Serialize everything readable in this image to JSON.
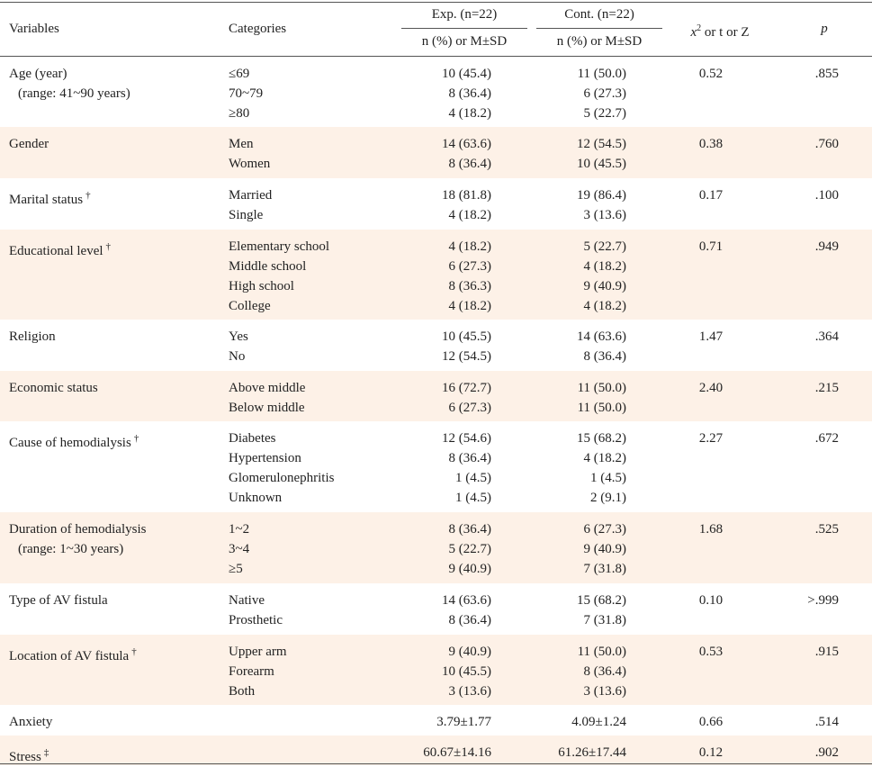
{
  "header": {
    "variables": "Variables",
    "categories": "Categories",
    "exp_group": "Exp. (n=22)",
    "cont_group": "Cont. (n=22)",
    "exp_sub": "n (%) or M±SD",
    "cont_sub": "n (%) or M±SD",
    "stat_x": "x",
    "stat_sup": "2",
    "stat_rest": " or t or Z",
    "p": "p"
  },
  "rows": [
    {
      "variable": [
        "Age (year)",
        "(range: 41~90 years)"
      ],
      "dagger": "",
      "categories": [
        "≤69",
        "70~79",
        "≥80"
      ],
      "exp": [
        "10 (45.4)",
        "8 (36.4)",
        "4 (18.2)"
      ],
      "cont": [
        "11 (50.0)",
        "6 (27.3)",
        "5 (22.7)"
      ],
      "stat": "0.52",
      "p": ".855"
    },
    {
      "variable": [
        "Gender"
      ],
      "dagger": "",
      "categories": [
        "Men",
        "Women"
      ],
      "exp": [
        "14 (63.6)",
        "8 (36.4)"
      ],
      "cont": [
        "12 (54.5)",
        "10 (45.5)"
      ],
      "stat": "0.38",
      "p": ".760"
    },
    {
      "variable": [
        "Marital status"
      ],
      "dagger": "†",
      "categories": [
        "Married",
        "Single"
      ],
      "exp": [
        "18 (81.8)",
        "4 (18.2)"
      ],
      "cont": [
        "19 (86.4)",
        "3 (13.6)"
      ],
      "stat": "0.17",
      "p": ".100"
    },
    {
      "variable": [
        "Educational level"
      ],
      "dagger": "†",
      "categories": [
        "Elementary school",
        "Middle school",
        "High school",
        "College"
      ],
      "exp": [
        "4 (18.2)",
        "6 (27.3)",
        "8 (36.3)",
        "4 (18.2)"
      ],
      "cont": [
        "5 (22.7)",
        "4 (18.2)",
        "9 (40.9)",
        "4 (18.2)"
      ],
      "stat": "0.71",
      "p": ".949"
    },
    {
      "variable": [
        "Religion"
      ],
      "dagger": "",
      "categories": [
        "Yes",
        "No"
      ],
      "exp": [
        "10 (45.5)",
        "12 (54.5)"
      ],
      "cont": [
        "14 (63.6)",
        "8 (36.4)"
      ],
      "stat": "1.47",
      "p": ".364"
    },
    {
      "variable": [
        "Economic status"
      ],
      "dagger": "",
      "categories": [
        "Above middle",
        "Below middle"
      ],
      "exp": [
        "16 (72.7)",
        "6 (27.3)"
      ],
      "cont": [
        "11 (50.0)",
        "11 (50.0)"
      ],
      "stat": "2.40",
      "p": ".215"
    },
    {
      "variable": [
        "Cause of hemodialysis"
      ],
      "dagger": "†",
      "categories": [
        "Diabetes",
        "Hypertension",
        "Glomerulonephritis",
        "Unknown"
      ],
      "exp": [
        "12 (54.6)",
        "8 (36.4)",
        "1 (4.5)",
        "1 (4.5)"
      ],
      "cont": [
        "15 (68.2)",
        "4 (18.2)",
        "1 (4.5)",
        "2 (9.1)"
      ],
      "stat": "2.27",
      "p": ".672"
    },
    {
      "variable": [
        "Duration of hemodialysis",
        "(range: 1~30 years)"
      ],
      "dagger": "",
      "categories": [
        "1~2",
        "3~4",
        "≥5"
      ],
      "exp": [
        "8 (36.4)",
        "5 (22.7)",
        "9 (40.9)"
      ],
      "cont": [
        "6 (27.3)",
        "9 (40.9)",
        "7 (31.8)"
      ],
      "stat": "1.68",
      "p": ".525"
    },
    {
      "variable": [
        "Type of AV fistula"
      ],
      "dagger": "",
      "categories": [
        "Native",
        "Prosthetic"
      ],
      "exp": [
        "14 (63.6)",
        "8 (36.4)"
      ],
      "cont": [
        "15 (68.2)",
        "7 (31.8)"
      ],
      "stat": "0.10",
      "p": ">.999"
    },
    {
      "variable": [
        "Location of AV fistula"
      ],
      "dagger": "†",
      "categories": [
        "Upper arm",
        "Forearm",
        "Both"
      ],
      "exp": [
        "9 (40.9)",
        "10 (45.5)",
        "3 (13.6)"
      ],
      "cont": [
        "11 (50.0)",
        "8 (36.4)",
        "3 (13.6)"
      ],
      "stat": "0.53",
      "p": ".915"
    },
    {
      "variable": [
        "Anxiety"
      ],
      "dagger": "",
      "categories": [],
      "exp": [
        "3.79±1.77"
      ],
      "cont": [
        "4.09±1.24"
      ],
      "stat": "0.66",
      "p": ".514"
    },
    {
      "variable": [
        "Stress"
      ],
      "dagger": "‡",
      "categories": [],
      "exp": [
        "60.67±14.16"
      ],
      "cont": [
        "61.26±17.44"
      ],
      "stat": "0.12",
      "p": ".902"
    }
  ],
  "colors": {
    "shade": "#fdf1e7",
    "rule": "#555555"
  }
}
